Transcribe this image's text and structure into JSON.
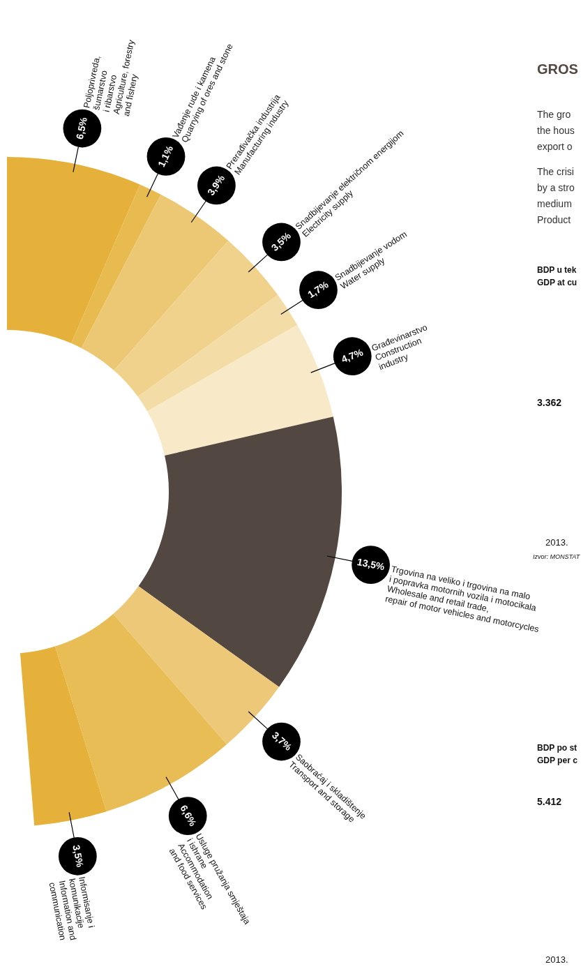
{
  "chart_data": {
    "type": "donut",
    "categories": [
      "Poljoprivreda,\nšumarstvo\ni ribarstvo\nAgriculture, forestry\nand fishery",
      "Vađenje rude i kamena\nQuarrying of ores and stone",
      "Prerađivačka industrija\nManufacturing industry",
      "Snadbijevanje električnom energijom\nElectricity supply",
      "Snadbijevanje vodom\nWater supply",
      "Građevinarstvo\nConstruction\nindustry",
      "Trgovina na veliko i trgovina na malo\ni popravka motornih vozila i motocikala\nWholesale and retail trade,\nrepair of motor vehicles and motorcycles",
      "Saobraćaj i skladištenje\nTransport and storage",
      "Usluge pružanja smještaja\ni ishrane\nAccommodation\nand food services",
      "Informisanje i\nkomunikacije\nInformation and\ncommunication"
    ],
    "values": [
      6.5,
      1.1,
      3.9,
      3.5,
      1.7,
      4.7,
      13.5,
      3.7,
      6.6,
      3.5
    ],
    "value_labels": [
      "6,5%",
      "1,1%",
      "3,9%",
      "3,5%",
      "1,7%",
      "4,7%",
      "13,5%",
      "3,7%",
      "6,6%",
      "3,5%"
    ],
    "colors": [
      "#e5b13a",
      "#e8bb50",
      "#edc874",
      "#f0d28c",
      "#f3dca6",
      "#f8e9c8",
      "#534741",
      "#edc878",
      "#e9bd56",
      "#e5b13a"
    ],
    "annotations": [
      "GROS",
      "The gro",
      "the hous",
      "export o",
      "The crisi",
      "by a stro",
      "medium",
      "Product",
      "BDP u tek",
      "GDP at cu",
      "3.362",
      "2013.",
      "Izvor: MONSTAT",
      "BDP po st",
      "GDP per c",
      "5.412",
      "2013."
    ]
  }
}
